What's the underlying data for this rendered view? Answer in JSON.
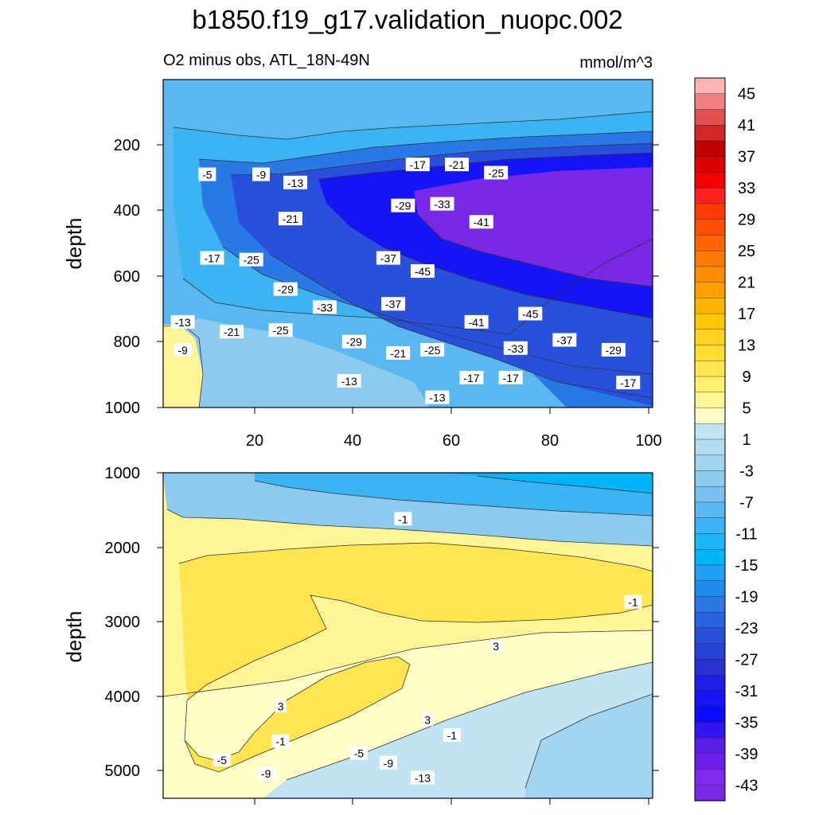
{
  "chart_data": [
    {
      "type": "filled-contour",
      "panel": "upper",
      "title": "b1850.f19_g17.validation_nuopc.002",
      "subtitle_left": "O2 minus obs, ATL_18N-49N",
      "subtitle_right": "mmol/m^3",
      "xlabel": "",
      "ylabel": "depth",
      "xlim": [
        0,
        100
      ],
      "ylim": [
        1000,
        0
      ],
      "xticks": [
        "20",
        "40",
        "60",
        "80",
        "100"
      ],
      "yticks": [
        "200",
        "400",
        "600",
        "800",
        "1000"
      ],
      "contour_labels": [
        {
          "text": "-13",
          "x": 56,
          "y": 30
        },
        {
          "text": "-13",
          "x": 38,
          "y": 80
        },
        {
          "text": "-17",
          "x": 63,
          "y": 90
        },
        {
          "text": "-17",
          "x": 71,
          "y": 90
        },
        {
          "text": "-17",
          "x": 95,
          "y": 75
        },
        {
          "text": "-9",
          "x": 4,
          "y": 175
        },
        {
          "text": "-21",
          "x": 48,
          "y": 165
        },
        {
          "text": "-25",
          "x": 55,
          "y": 175
        },
        {
          "text": "-33",
          "x": 72,
          "y": 180
        },
        {
          "text": "-29",
          "x": 92,
          "y": 175
        },
        {
          "text": "-29",
          "x": 39,
          "y": 200
        },
        {
          "text": "-37",
          "x": 82,
          "y": 205
        },
        {
          "text": "-21",
          "x": 14,
          "y": 230
        },
        {
          "text": "-25",
          "x": 24,
          "y": 235
        },
        {
          "text": "-13",
          "x": 4,
          "y": 260
        },
        {
          "text": "-41",
          "x": 64,
          "y": 260
        },
        {
          "text": "-45",
          "x": 75,
          "y": 285
        },
        {
          "text": "-33",
          "x": 33,
          "y": 305
        },
        {
          "text": "-37",
          "x": 47,
          "y": 315
        },
        {
          "text": "-29",
          "x": 25,
          "y": 360
        },
        {
          "text": "-45",
          "x": 53,
          "y": 415
        },
        {
          "text": "-25",
          "x": 18,
          "y": 450
        },
        {
          "text": "-17",
          "x": 10,
          "y": 455
        },
        {
          "text": "-37",
          "x": 46,
          "y": 455
        },
        {
          "text": "-41",
          "x": 65,
          "y": 565
        },
        {
          "text": "-21",
          "x": 26,
          "y": 575
        },
        {
          "text": "-29",
          "x": 49,
          "y": 615
        },
        {
          "text": "-33",
          "x": 57,
          "y": 620
        },
        {
          "text": "-13",
          "x": 27,
          "y": 685
        },
        {
          "text": "-5",
          "x": 9,
          "y": 710
        },
        {
          "text": "-9",
          "x": 20,
          "y": 710
        },
        {
          "text": "-25",
          "x": 68,
          "y": 715
        },
        {
          "text": "-17",
          "x": 52,
          "y": 740
        },
        {
          "text": "-21",
          "x": 60,
          "y": 740
        }
      ]
    },
    {
      "type": "filled-contour",
      "panel": "lower",
      "xlabel": "",
      "ylabel": "depth",
      "xlim": [
        0,
        100
      ],
      "ylim": [
        5350,
        1000
      ],
      "yticks": [
        "1000",
        "2000",
        "3000",
        "4000",
        "5000"
      ],
      "contour_labels": [
        {
          "text": "-9",
          "x": 21,
          "y": 1330
        },
        {
          "text": "-13",
          "x": 53,
          "y": 1270
        },
        {
          "text": "-5",
          "x": 12,
          "y": 1510
        },
        {
          "text": "-9",
          "x": 46,
          "y": 1470
        },
        {
          "text": "-5",
          "x": 40,
          "y": 1600
        },
        {
          "text": "-1",
          "x": 24,
          "y": 1760
        },
        {
          "text": "-1",
          "x": 59,
          "y": 1840
        },
        {
          "text": "3",
          "x": 54,
          "y": 2050
        },
        {
          "text": "3",
          "x": 24,
          "y": 2230
        },
        {
          "text": "3",
          "x": 68,
          "y": 3030
        },
        {
          "text": "-1",
          "x": 96,
          "y": 3620
        },
        {
          "text": "-1",
          "x": 49,
          "y": 4730
        }
      ]
    }
  ],
  "colorbar": {
    "units": "mmol/m^3",
    "colors": [
      "#ffb4b4",
      "#f08080",
      "#e05050",
      "#d02828",
      "#c00000",
      "#dc0000",
      "#f40000",
      "#ff2020",
      "#ff3a00",
      "#ff5000",
      "#ff6400",
      "#ff7a00",
      "#ff8c00",
      "#ffa000",
      "#ffb400",
      "#ffc800",
      "#ffd21e",
      "#ffdc32",
      "#ffe650",
      "#fff06e",
      "#fff596",
      "#ffffc8",
      "#c0e4f4",
      "#b4dcf0",
      "#a0d4f0",
      "#8ccaf0",
      "#78c0f0",
      "#5ab8f0",
      "#3cb4f4",
      "#1eb4f8",
      "#00b4fa",
      "#1ea0f5",
      "#1e8ceb",
      "#2878e6",
      "#2864e1",
      "#2850dc",
      "#2841d7",
      "#2832d2",
      "#1e1ee6",
      "#1414f5",
      "#0a0aff",
      "#3214f0",
      "#5a1ee6",
      "#6e1eeb",
      "#8228f0",
      "#7828e6"
    ],
    "labels": [
      "45",
      "41",
      "37",
      "33",
      "29",
      "25",
      "21",
      "17",
      "13",
      "9",
      "5",
      "1",
      "-3",
      "-7",
      "-11",
      "-15",
      "-19",
      "-23",
      "-27",
      "-31",
      "-35",
      "-39",
      "-43"
    ]
  }
}
